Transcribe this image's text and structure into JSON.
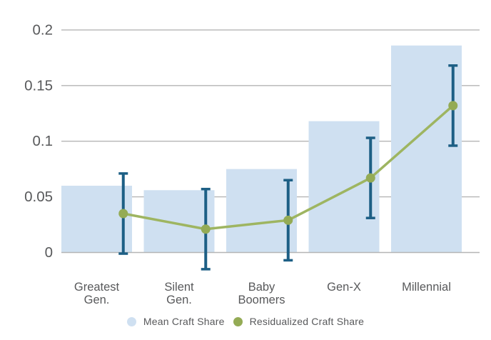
{
  "chart_data": {
    "type": "bar",
    "title": "",
    "xlabel": "",
    "ylabel": "",
    "categories": [
      "Greatest Gen.",
      "Silent Gen.",
      "Baby Boomers",
      "Gen-X",
      "Millennial"
    ],
    "category_lines": [
      [
        "Greatest",
        "Gen."
      ],
      [
        "Silent",
        "Gen."
      ],
      [
        "Baby",
        "Boomers"
      ],
      [
        "Gen-X"
      ],
      [
        "Millennial"
      ]
    ],
    "series": [
      {
        "name": "Mean Craft Share",
        "type": "bar",
        "values": [
          0.06,
          0.056,
          0.075,
          0.118,
          0.186
        ],
        "color": "#cfe0f1"
      },
      {
        "name": "Residualized Craft Share",
        "type": "line",
        "values": [
          0.035,
          0.021,
          0.029,
          0.067,
          0.132
        ],
        "ci_high": [
          0.071,
          0.057,
          0.065,
          0.103,
          0.168
        ],
        "ci_low": [
          -0.001,
          -0.015,
          -0.007,
          0.031,
          0.096
        ],
        "line_color": "#9eb561",
        "point_color": "#94ab55",
        "error_color": "#1d5f85"
      }
    ],
    "y_ticks": [
      0,
      0.05,
      0.1,
      0.15,
      0.2
    ],
    "y_tick_labels": [
      "0",
      "0.05",
      "0.1",
      "0.15",
      "0.2"
    ],
    "ylim": [
      -0.02,
      0.205
    ],
    "grid": true,
    "grid_color": "#b5b5b5",
    "axis_text_color": "#58595b",
    "background": "#ffffff",
    "legend_position": "bottom"
  },
  "legend": {
    "items": [
      {
        "label": "Mean Craft Share",
        "color": "#cfe0f1"
      },
      {
        "label": "Residualized Craft Share",
        "color": "#94ab55"
      }
    ]
  }
}
